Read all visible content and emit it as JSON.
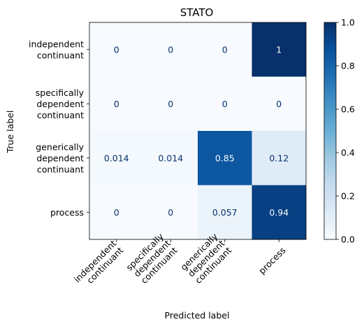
{
  "chart_data": {
    "type": "heatmap",
    "title": "STATO",
    "xlabel": "Predicted label",
    "ylabel": "True label",
    "row_labels": [
      [
        "independent",
        "continuant"
      ],
      [
        "specifically",
        "dependent",
        "continuant"
      ],
      [
        "generically",
        "dependent",
        "continuant"
      ],
      [
        "process"
      ]
    ],
    "col_labels": [
      [
        "independent",
        "continuant"
      ],
      [
        "specifically",
        "dependent",
        "continuant"
      ],
      [
        "generically",
        "dependent",
        "continuant"
      ],
      [
        "process"
      ]
    ],
    "values": [
      [
        0,
        0,
        0,
        1
      ],
      [
        0,
        0,
        0,
        0
      ],
      [
        0.014,
        0.014,
        0.85,
        0.12
      ],
      [
        0,
        0,
        0.057,
        0.94
      ]
    ],
    "cell_text": [
      [
        "0",
        "0",
        "0",
        "1"
      ],
      [
        "0",
        "0",
        "0",
        "0"
      ],
      [
        "0.014",
        "0.014",
        "0.85",
        "0.12"
      ],
      [
        "0",
        "0",
        "0.057",
        "0.94"
      ]
    ],
    "colorbar": {
      "min": 0.0,
      "max": 1.0,
      "ticks": [
        "0.0",
        "0.2",
        "0.4",
        "0.6",
        "0.8",
        "1.0"
      ],
      "colormap": "Blues"
    },
    "colors": {
      "low": "#f7fbff",
      "high": "#08306b",
      "text_light": "#f7fbff",
      "text_dark": "#08306b"
    }
  }
}
